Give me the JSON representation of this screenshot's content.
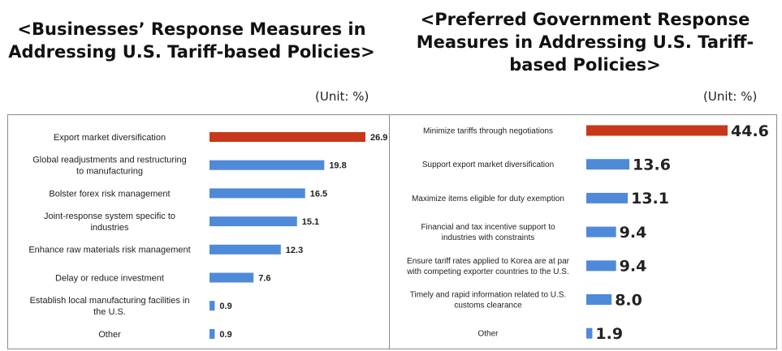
{
  "charts": {
    "left": {
      "title_line1": "<Businesses’ Response Measures in",
      "title_line2": "Addressing U.S. Tariff-based Policies>",
      "unit": "(Unit: %)"
    },
    "right": {
      "title_line1": "<Preferred Government Response",
      "title_line2": "Measures in Addressing U.S. Tariff-",
      "title_line3": "based Policies>",
      "unit": "(Unit: %)"
    }
  },
  "colors": {
    "highlight": "#c9371a",
    "bar": "#4f8ad8"
  },
  "chart_data": [
    {
      "type": "bar",
      "orientation": "horizontal",
      "title": "<Businesses’ Response Measures in Addressing U.S. Tariff-based Policies>",
      "unit": "(Unit: %)",
      "categories": [
        [
          "Export market diversification"
        ],
        [
          "Global readjustments and restructuring",
          "to manufacturing"
        ],
        [
          "Bolster forex risk management"
        ],
        [
          "Joint-response system specific to",
          "industries"
        ],
        [
          "Enhance raw materials risk management"
        ],
        [
          "Delay or reduce investment"
        ],
        [
          "Establish local manufacturing facilities in",
          "the U.S."
        ],
        [
          "Other"
        ]
      ],
      "values": [
        26.9,
        19.8,
        16.5,
        15.1,
        12.3,
        7.6,
        0.9,
        0.9
      ],
      "value_labels": [
        "26.9",
        "19.8",
        "16.5",
        "15.1",
        "12.3",
        "7.6",
        "0.9",
        "0.9"
      ],
      "highlight_index": 0,
      "xlim": [
        0,
        26.9
      ]
    },
    {
      "type": "bar",
      "orientation": "horizontal",
      "title": "<Preferred Government Response Measures in Addressing U.S. Tariff-based Policies>",
      "unit": "(Unit: %)",
      "categories": [
        [
          "Minimize tariffs through negotiations"
        ],
        [
          "Support export market diversification"
        ],
        [
          "Maximize items eligible for duty exemption"
        ],
        [
          "Financial and tax incentive support to",
          "industries with constraints"
        ],
        [
          "Ensure tariff rates applied to Korea are at par",
          "with competing exporter countries to the U.S."
        ],
        [
          "Timely and rapid information related to U.S.",
          "customs clearance"
        ],
        [
          "Other"
        ]
      ],
      "values": [
        44.6,
        13.6,
        13.1,
        9.4,
        9.4,
        8.0,
        1.9
      ],
      "value_labels": [
        "44.6",
        "13.6",
        "13.1",
        "9.4",
        "9.4",
        "8.0",
        "1.9"
      ],
      "highlight_index": 0,
      "xlim": [
        0,
        44.6
      ]
    }
  ]
}
